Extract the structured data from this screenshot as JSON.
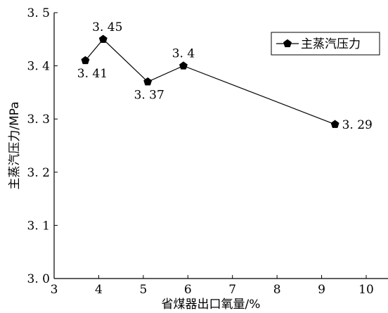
{
  "chart_data": {
    "type": "line",
    "xlabel": "省煤器出口氧量/%",
    "ylabel": "主蒸汽压力/MPa",
    "xlim": [
      3,
      10
    ],
    "ylim": [
      3.0,
      3.5
    ],
    "x_ticks": [
      "3",
      "4",
      "5",
      "6",
      "7",
      "8",
      "9",
      "10"
    ],
    "y_ticks": [
      "3. 0",
      "3. 1",
      "3. 2",
      "3. 3",
      "3. 4",
      "3. 5"
    ],
    "grid": false,
    "legend_position": "top-right",
    "series": [
      {
        "name": "主蒸汽压力",
        "marker": "pentagon",
        "x": [
          3.7,
          4.1,
          5.1,
          5.9,
          9.3
        ],
        "y": [
          3.41,
          3.45,
          3.37,
          3.4,
          3.29
        ],
        "labels": [
          "3. 41",
          "3. 45",
          "3. 37",
          "3. 4",
          "3. 29"
        ]
      }
    ]
  }
}
